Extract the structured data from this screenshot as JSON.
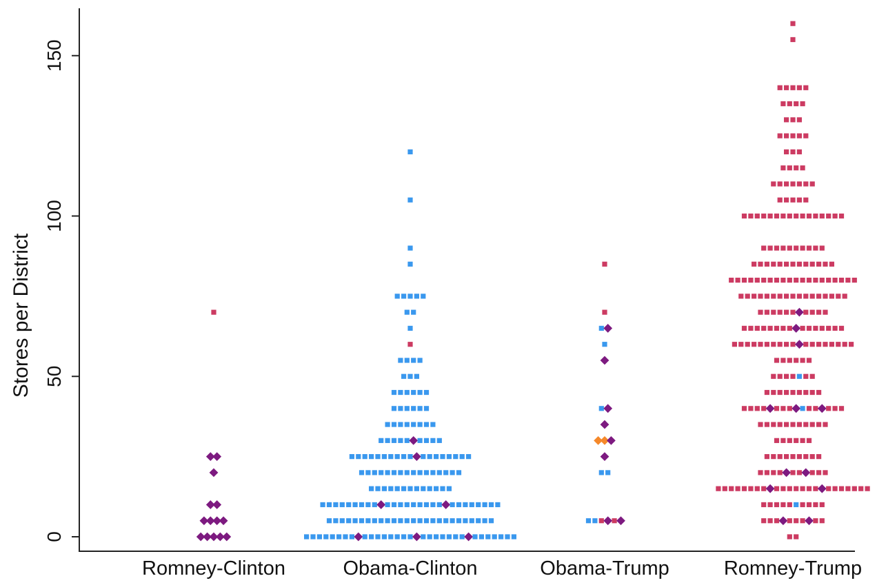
{
  "chart_data": {
    "type": "scatter",
    "subtype": "beeswarm",
    "title": "",
    "ylabel": "Stores per District",
    "xlabel": "",
    "categories": [
      "Romney-Clinton",
      "Obama-Clinton",
      "Obama-Trump",
      "Romney-Trump"
    ],
    "ylim": [
      0,
      160
    ],
    "yticks": [
      0,
      50,
      100,
      150
    ],
    "grid": false,
    "legend": "none",
    "bin_width": 5,
    "series": [
      {
        "marker": "square",
        "color": "#3a98ee",
        "points": [
          {
            "category": "Obama-Clinton",
            "y": 0,
            "count": 30
          },
          {
            "category": "Obama-Clinton",
            "y": 5,
            "count": 26
          },
          {
            "category": "Obama-Clinton",
            "y": 10,
            "count": 26
          },
          {
            "category": "Obama-Clinton",
            "y": 15,
            "count": 13
          },
          {
            "category": "Obama-Clinton",
            "y": 20,
            "count": 16
          },
          {
            "category": "Obama-Clinton",
            "y": 25,
            "count": 18
          },
          {
            "category": "Obama-Clinton",
            "y": 30,
            "count": 9
          },
          {
            "category": "Obama-Clinton",
            "y": 35,
            "count": 8
          },
          {
            "category": "Obama-Clinton",
            "y": 40,
            "count": 6
          },
          {
            "category": "Obama-Clinton",
            "y": 45,
            "count": 6
          },
          {
            "category": "Obama-Clinton",
            "y": 50,
            "count": 3
          },
          {
            "category": "Obama-Clinton",
            "y": 55,
            "count": 4
          },
          {
            "category": "Obama-Clinton",
            "y": 65,
            "count": 1
          },
          {
            "category": "Obama-Clinton",
            "y": 70,
            "count": 2
          },
          {
            "category": "Obama-Clinton",
            "y": 75,
            "count": 5
          },
          {
            "category": "Obama-Clinton",
            "y": 85,
            "count": 1
          },
          {
            "category": "Obama-Clinton",
            "y": 90,
            "count": 1
          },
          {
            "category": "Obama-Clinton",
            "y": 105,
            "count": 1
          },
          {
            "category": "Obama-Clinton",
            "y": 120,
            "count": 1
          },
          {
            "category": "Obama-Trump",
            "y": 5,
            "count": 2
          },
          {
            "category": "Obama-Trump",
            "y": 20,
            "count": 2
          },
          {
            "category": "Obama-Trump",
            "y": 40,
            "count": 1
          },
          {
            "category": "Obama-Trump",
            "y": 60,
            "count": 1
          },
          {
            "category": "Obama-Trump",
            "y": 65,
            "count": 1
          },
          {
            "category": "Romney-Trump",
            "y": 10,
            "count": 1
          },
          {
            "category": "Romney-Trump",
            "y": 40,
            "count": 1
          },
          {
            "category": "Romney-Trump",
            "y": 50,
            "count": 1
          }
        ]
      },
      {
        "marker": "square",
        "color": "#cc3b62",
        "points": [
          {
            "category": "Romney-Clinton",
            "y": 70,
            "count": 1
          },
          {
            "category": "Obama-Clinton",
            "y": 60,
            "count": 1
          },
          {
            "category": "Obama-Trump",
            "y": 5,
            "count": 2
          },
          {
            "category": "Obama-Trump",
            "y": 70,
            "count": 1
          },
          {
            "category": "Obama-Trump",
            "y": 85,
            "count": 1
          },
          {
            "category": "Romney-Trump",
            "y": 0,
            "count": 2
          },
          {
            "category": "Romney-Trump",
            "y": 5,
            "count": 8
          },
          {
            "category": "Romney-Trump",
            "y": 10,
            "count": 9
          },
          {
            "category": "Romney-Trump",
            "y": 15,
            "count": 22
          },
          {
            "category": "Romney-Trump",
            "y": 20,
            "count": 9
          },
          {
            "category": "Romney-Trump",
            "y": 25,
            "count": 9
          },
          {
            "category": "Romney-Trump",
            "y": 30,
            "count": 6
          },
          {
            "category": "Romney-Trump",
            "y": 35,
            "count": 11
          },
          {
            "category": "Romney-Trump",
            "y": 40,
            "count": 12
          },
          {
            "category": "Romney-Trump",
            "y": 45,
            "count": 9
          },
          {
            "category": "Romney-Trump",
            "y": 50,
            "count": 6
          },
          {
            "category": "Romney-Trump",
            "y": 55,
            "count": 6
          },
          {
            "category": "Romney-Trump",
            "y": 60,
            "count": 18
          },
          {
            "category": "Romney-Trump",
            "y": 65,
            "count": 15
          },
          {
            "category": "Romney-Trump",
            "y": 70,
            "count": 10
          },
          {
            "category": "Romney-Trump",
            "y": 75,
            "count": 17
          },
          {
            "category": "Romney-Trump",
            "y": 80,
            "count": 20
          },
          {
            "category": "Romney-Trump",
            "y": 85,
            "count": 13
          },
          {
            "category": "Romney-Trump",
            "y": 90,
            "count": 10
          },
          {
            "category": "Romney-Trump",
            "y": 100,
            "count": 16
          },
          {
            "category": "Romney-Trump",
            "y": 105,
            "count": 5
          },
          {
            "category": "Romney-Trump",
            "y": 110,
            "count": 7
          },
          {
            "category": "Romney-Trump",
            "y": 115,
            "count": 4
          },
          {
            "category": "Romney-Trump",
            "y": 120,
            "count": 3
          },
          {
            "category": "Romney-Trump",
            "y": 125,
            "count": 5
          },
          {
            "category": "Romney-Trump",
            "y": 130,
            "count": 3
          },
          {
            "category": "Romney-Trump",
            "y": 135,
            "count": 4
          },
          {
            "category": "Romney-Trump",
            "y": 140,
            "count": 5
          },
          {
            "category": "Romney-Trump",
            "y": 155,
            "count": 1
          },
          {
            "category": "Romney-Trump",
            "y": 160,
            "count": 1
          }
        ]
      },
      {
        "marker": "diamond",
        "color": "#7d1a80",
        "points": [
          {
            "category": "Romney-Clinton",
            "y": 0,
            "count": 5
          },
          {
            "category": "Romney-Clinton",
            "y": 5,
            "count": 4
          },
          {
            "category": "Romney-Clinton",
            "y": 10,
            "count": 2
          },
          {
            "category": "Romney-Clinton",
            "y": 20,
            "count": 1
          },
          {
            "category": "Romney-Clinton",
            "y": 25,
            "count": 2
          },
          {
            "category": "Obama-Clinton",
            "y": 0,
            "count": 3
          },
          {
            "category": "Obama-Clinton",
            "y": 10,
            "count": 2
          },
          {
            "category": "Obama-Clinton",
            "y": 25,
            "count": 1
          },
          {
            "category": "Obama-Clinton",
            "y": 30,
            "count": 1
          },
          {
            "category": "Obama-Trump",
            "y": 5,
            "count": 2
          },
          {
            "category": "Obama-Trump",
            "y": 25,
            "count": 1
          },
          {
            "category": "Obama-Trump",
            "y": 30,
            "count": 1
          },
          {
            "category": "Obama-Trump",
            "y": 35,
            "count": 1
          },
          {
            "category": "Obama-Trump",
            "y": 40,
            "count": 1
          },
          {
            "category": "Obama-Trump",
            "y": 55,
            "count": 1
          },
          {
            "category": "Obama-Trump",
            "y": 65,
            "count": 1
          },
          {
            "category": "Romney-Trump",
            "y": 5,
            "count": 2
          },
          {
            "category": "Romney-Trump",
            "y": 15,
            "count": 2
          },
          {
            "category": "Romney-Trump",
            "y": 20,
            "count": 2
          },
          {
            "category": "Romney-Trump",
            "y": 40,
            "count": 3
          },
          {
            "category": "Romney-Trump",
            "y": 60,
            "count": 1
          },
          {
            "category": "Romney-Trump",
            "y": 65,
            "count": 1
          },
          {
            "category": "Romney-Trump",
            "y": 70,
            "count": 1
          }
        ]
      },
      {
        "marker": "diamond",
        "color": "#f5882a",
        "points": [
          {
            "category": "Obama-Trump",
            "y": 30,
            "count": 2
          }
        ]
      }
    ]
  }
}
